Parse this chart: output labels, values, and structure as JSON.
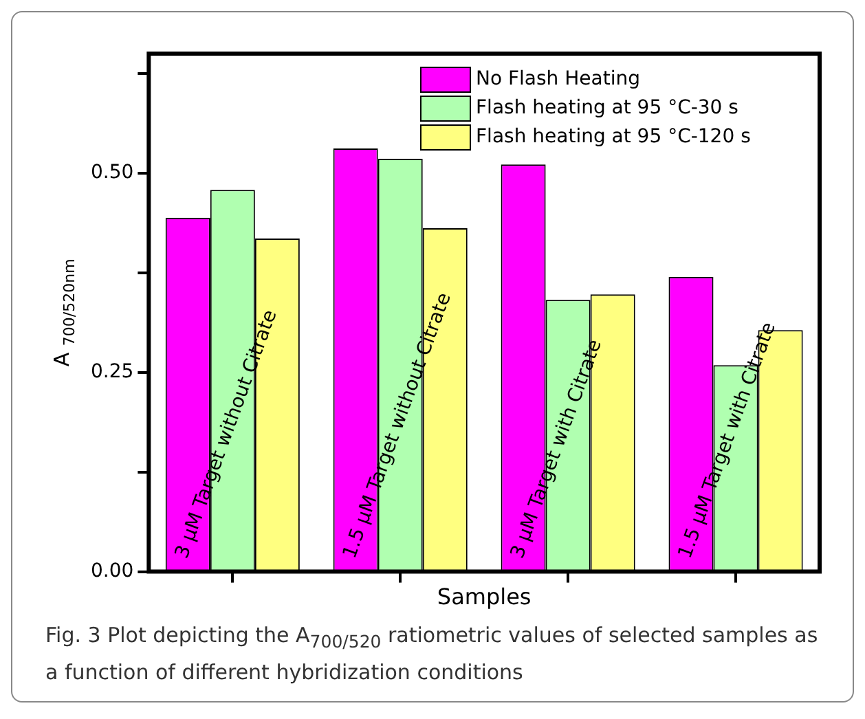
{
  "chart_data": {
    "type": "bar",
    "xlabel": "Samples",
    "ylabel": "A$_{700/520nm}$",
    "categories": [
      "3 μM Target without Citrate",
      "1.5 μM Target without Citrate",
      "3 μM Target with Citrate",
      "1.5 μM Target with Citrate"
    ],
    "series": [
      {
        "name": "No Flash Heating",
        "color": "#ff00ff",
        "values": [
          0.444,
          0.531,
          0.511,
          0.37
        ]
      },
      {
        "name": "Flash heating at 95 °C-30 s",
        "color": "#b0ffb0",
        "values": [
          0.479,
          0.518,
          0.341,
          0.259
        ]
      },
      {
        "name": "Flash heating at 95 °C-120 s",
        "color": "#ffff80",
        "values": [
          0.418,
          0.431,
          0.348,
          0.303
        ]
      }
    ],
    "ylim": [
      0,
      0.65
    ],
    "yticks": [
      {
        "value": 0,
        "label": "0.00"
      },
      {
        "value": 0.125,
        "label": null
      },
      {
        "value": 0.25,
        "label": "0.25"
      },
      {
        "value": 0.375,
        "label": null
      },
      {
        "value": 0.5,
        "label": "0.50"
      },
      {
        "value": 0.625,
        "label": null
      }
    ],
    "legend": "top right",
    "grid": false,
    "annotations": [
      "Fig. 3 Plot depicting the A$_{700/520}$ ratiometric values of selected samples as a function of different hybridization conditions"
    ]
  }
}
